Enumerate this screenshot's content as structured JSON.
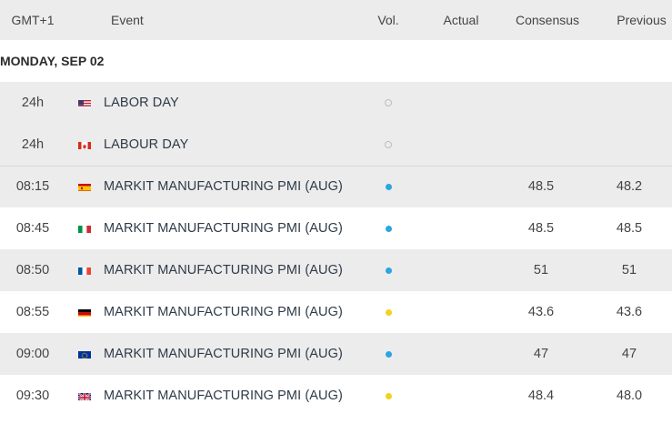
{
  "header": {
    "time": "GMT+1",
    "event": "Event",
    "vol": "Vol.",
    "actual": "Actual",
    "consensus": "Consensus",
    "previous": "Previous"
  },
  "date_label": "MONDAY, SEP 02",
  "colors": {
    "vol_low": "#bdbdbd",
    "vol_medium": "#2aa6e0",
    "vol_high": "#f2d21b"
  },
  "events": [
    {
      "time": "24h",
      "flag": "us-flag-icon",
      "event": "LABOR DAY",
      "vol": "empty",
      "actual": "",
      "consensus": "",
      "previous": ""
    },
    {
      "time": "24h",
      "flag": "ca-flag-icon",
      "event": "LABOUR DAY",
      "vol": "empty",
      "actual": "",
      "consensus": "",
      "previous": ""
    },
    {
      "time": "08:15",
      "flag": "es-flag-icon",
      "event": "MARKIT MANUFACTURING PMI (AUG)",
      "vol": "blue",
      "actual": "",
      "consensus": "48.5",
      "previous": "48.2"
    },
    {
      "time": "08:45",
      "flag": "it-flag-icon",
      "event": "MARKIT MANUFACTURING PMI (AUG)",
      "vol": "blue",
      "actual": "",
      "consensus": "48.5",
      "previous": "48.5"
    },
    {
      "time": "08:50",
      "flag": "fr-flag-icon",
      "event": "MARKIT MANUFACTURING PMI (AUG)",
      "vol": "blue",
      "actual": "",
      "consensus": "51",
      "previous": "51"
    },
    {
      "time": "08:55",
      "flag": "de-flag-icon",
      "event": "MARKIT MANUFACTURING PMI (AUG)",
      "vol": "yellow",
      "actual": "",
      "consensus": "43.6",
      "previous": "43.6"
    },
    {
      "time": "09:00",
      "flag": "eu-flag-icon",
      "event": "MARKIT MANUFACTURING PMI (AUG)",
      "vol": "blue",
      "actual": "",
      "consensus": "47",
      "previous": "47"
    },
    {
      "time": "09:30",
      "flag": "gb-flag-icon",
      "event": "MARKIT MANUFACTURING PMI (AUG)",
      "vol": "yellow",
      "actual": "",
      "consensus": "48.4",
      "previous": "48.0"
    }
  ]
}
